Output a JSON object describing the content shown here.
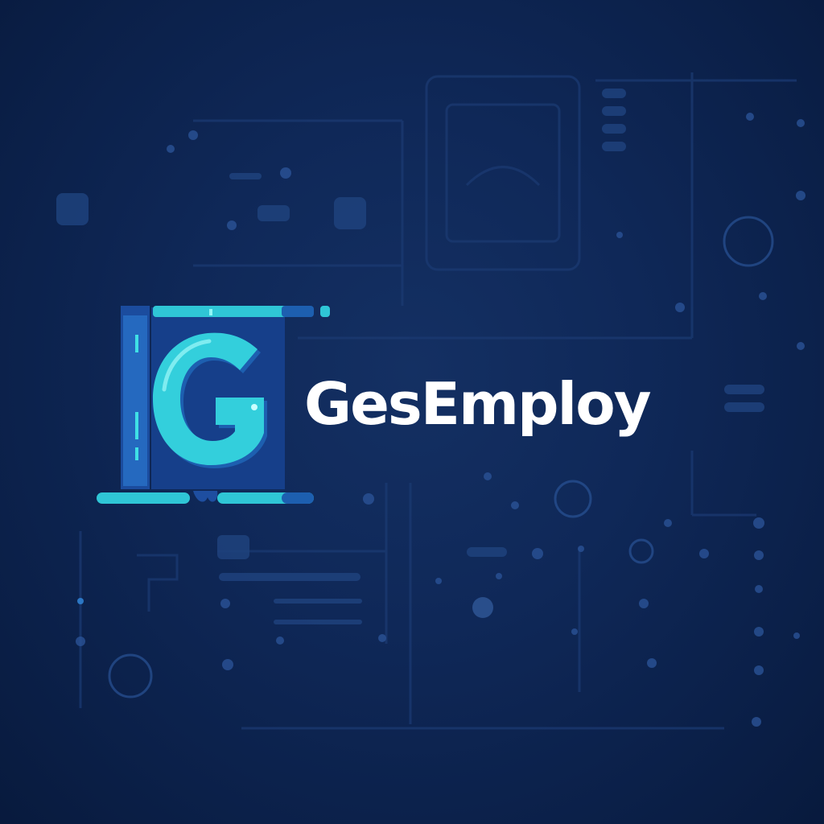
{
  "brand": {
    "name": "GesEmploy",
    "monogram": "G"
  },
  "colors": {
    "background": "#0d2450",
    "accent": "#2fd3d9",
    "accent_dark": "#1668a8",
    "text": "#ffffff"
  },
  "icons": {
    "logo": "g-monogram-icon",
    "background": "circuit-pattern-icon"
  }
}
